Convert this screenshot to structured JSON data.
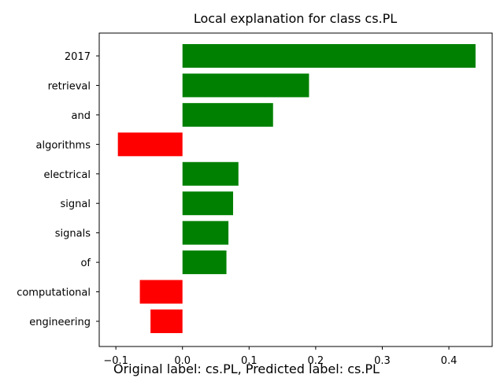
{
  "chart_data": {
    "type": "bar",
    "orientation": "horizontal",
    "title": "Local explanation for class cs.PL",
    "xlabel": "",
    "ylabel": "",
    "categories": [
      "2017",
      "retrieval",
      "and",
      "algorithms",
      "electrical",
      "signal",
      "signals",
      "of",
      "computational",
      "engineering"
    ],
    "values": [
      0.44,
      0.19,
      0.136,
      -0.097,
      0.084,
      0.076,
      0.069,
      0.066,
      -0.064,
      -0.048
    ],
    "xlim": [
      -0.125,
      0.465
    ],
    "xticks": [
      -0.1,
      0.0,
      0.1,
      0.2,
      0.3,
      0.4
    ],
    "xtick_labels": [
      "−0.1",
      "0.0",
      "0.1",
      "0.2",
      "0.3",
      "0.4"
    ],
    "grid": false,
    "colors": {
      "positive": "#008000",
      "negative": "#ff0000"
    }
  },
  "caption": "Original label: cs.PL, Predicted label: cs.PL"
}
